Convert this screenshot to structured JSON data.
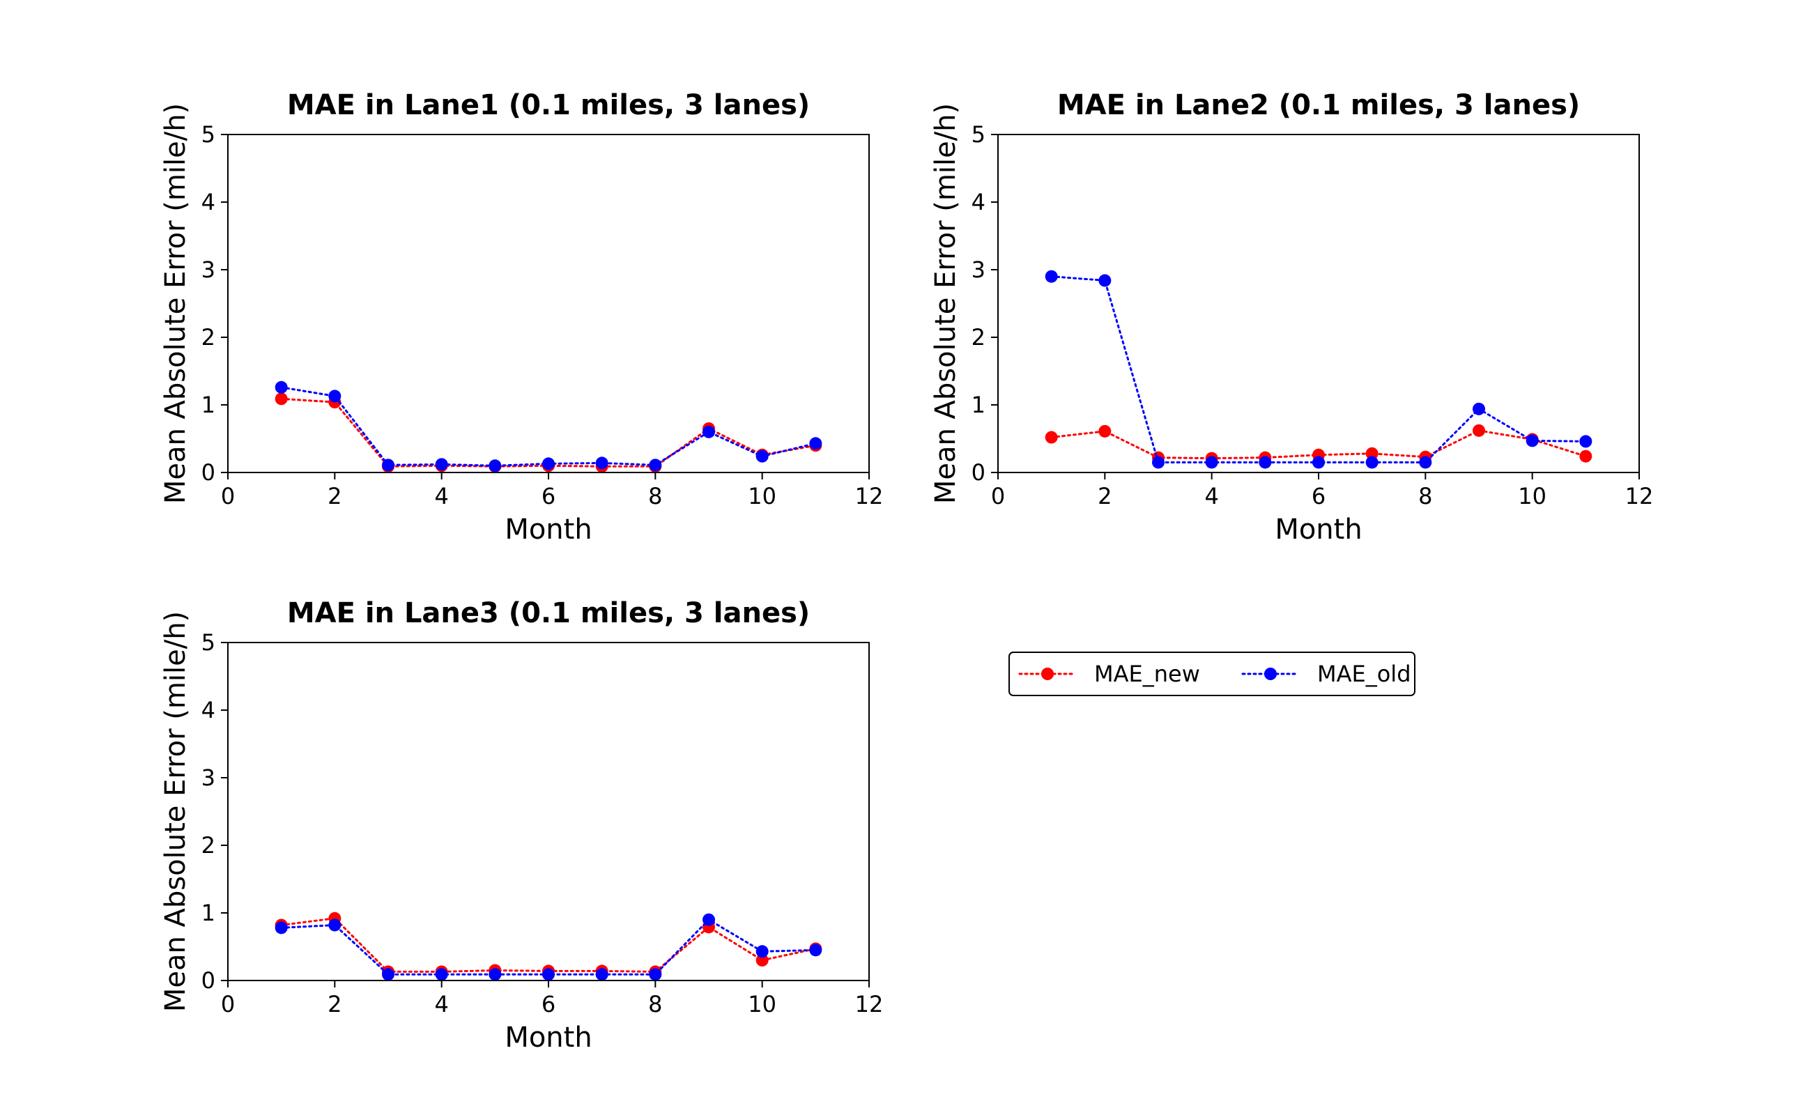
{
  "colors": {
    "new": "#ff0000",
    "old": "#0000ff"
  },
  "legend": {
    "placement": "below-right-panel",
    "entries": [
      {
        "label": "MAE_new",
        "color_key": "new"
      },
      {
        "label": "MAE_old",
        "color_key": "old"
      }
    ]
  },
  "chart_data": [
    {
      "type": "line",
      "title": "MAE in Lane1 (0.1 miles, 3 lanes)",
      "xlabel": "Month",
      "ylabel": "Mean Absolute Error (mile/h)",
      "xlim": [
        0,
        12
      ],
      "ylim": [
        0,
        5
      ],
      "xticks": [
        "0",
        "2",
        "4",
        "6",
        "8",
        "10",
        "12"
      ],
      "yticks": [
        "0",
        "1",
        "2",
        "3",
        "4",
        "5"
      ],
      "grid": false,
      "x": [
        1,
        2,
        3,
        4,
        5,
        6,
        7,
        8,
        9,
        10,
        11
      ],
      "series": [
        {
          "name": "MAE_new",
          "color_key": "new",
          "style": "dotted",
          "marker": "circle",
          "values": [
            1.09,
            1.04,
            0.09,
            0.1,
            0.09,
            0.1,
            0.09,
            0.09,
            0.65,
            0.26,
            0.4
          ]
        },
        {
          "name": "MAE_old",
          "color_key": "old",
          "style": "dotted",
          "marker": "circle",
          "values": [
            1.26,
            1.13,
            0.11,
            0.12,
            0.1,
            0.13,
            0.14,
            0.11,
            0.6,
            0.24,
            0.43
          ]
        }
      ]
    },
    {
      "type": "line",
      "title": "MAE in Lane2 (0.1 miles, 3 lanes)",
      "xlabel": "Month",
      "ylabel": "Mean Absolute Error (mile/h)",
      "xlim": [
        0,
        12
      ],
      "ylim": [
        0,
        5
      ],
      "xticks": [
        "0",
        "2",
        "4",
        "6",
        "8",
        "10",
        "12"
      ],
      "yticks": [
        "0",
        "1",
        "2",
        "3",
        "4",
        "5"
      ],
      "grid": false,
      "x": [
        1,
        2,
        3,
        4,
        5,
        6,
        7,
        8,
        9,
        10,
        11
      ],
      "series": [
        {
          "name": "MAE_new",
          "color_key": "new",
          "style": "dotted",
          "marker": "circle",
          "values": [
            0.52,
            0.61,
            0.22,
            0.21,
            0.22,
            0.26,
            0.28,
            0.23,
            0.62,
            0.49,
            0.24
          ]
        },
        {
          "name": "MAE_old",
          "color_key": "old",
          "style": "dotted",
          "marker": "circle",
          "values": [
            2.9,
            2.84,
            0.15,
            0.15,
            0.15,
            0.15,
            0.15,
            0.15,
            0.94,
            0.47,
            0.46
          ]
        }
      ]
    },
    {
      "type": "line",
      "title": "MAE in Lane3 (0.1 miles, 3 lanes)",
      "xlabel": "Month",
      "ylabel": "Mean Absolute Error (mile/h)",
      "xlim": [
        0,
        12
      ],
      "ylim": [
        0,
        5
      ],
      "xticks": [
        "0",
        "2",
        "4",
        "6",
        "8",
        "10",
        "12"
      ],
      "yticks": [
        "0",
        "1",
        "2",
        "3",
        "4",
        "5"
      ],
      "grid": false,
      "x": [
        1,
        2,
        3,
        4,
        5,
        6,
        7,
        8,
        9,
        10,
        11
      ],
      "series": [
        {
          "name": "MAE_new",
          "color_key": "new",
          "style": "dotted",
          "marker": "circle",
          "values": [
            0.82,
            0.92,
            0.13,
            0.13,
            0.15,
            0.14,
            0.14,
            0.13,
            0.79,
            0.3,
            0.47
          ]
        },
        {
          "name": "MAE_old",
          "color_key": "old",
          "style": "dotted",
          "marker": "circle",
          "values": [
            0.78,
            0.82,
            0.09,
            0.09,
            0.09,
            0.09,
            0.09,
            0.09,
            0.9,
            0.43,
            0.45
          ]
        }
      ]
    }
  ]
}
